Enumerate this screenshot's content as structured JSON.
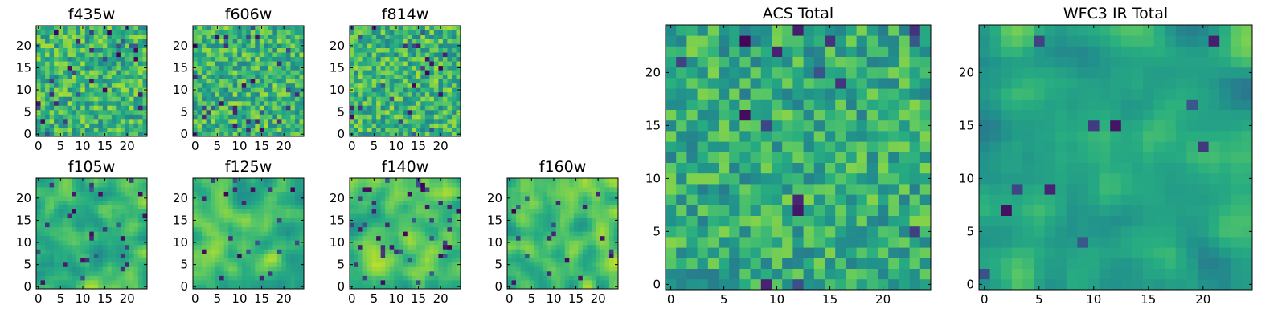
{
  "chart_data": {
    "type": "heatmap",
    "colormap": "viridis",
    "panels": [
      {
        "id": "f435w",
        "title": "f435w",
        "pixels": 25,
        "xlim": [
          0,
          24
        ],
        "ylim": [
          0,
          24
        ],
        "xticks": [
          0,
          5,
          10,
          15,
          20
        ],
        "yticks": [
          0,
          5,
          10,
          15,
          20
        ],
        "grain": 1,
        "bias": 0.66,
        "spread": 0.22,
        "dark_fraction": 0.05,
        "seed": 11
      },
      {
        "id": "f606w",
        "title": "f606w",
        "pixels": 25,
        "xlim": [
          0,
          24
        ],
        "ylim": [
          0,
          24
        ],
        "xticks": [
          0,
          5,
          10,
          15,
          20
        ],
        "yticks": [
          0,
          5,
          10,
          15,
          20
        ],
        "grain": 1,
        "bias": 0.66,
        "spread": 0.22,
        "dark_fraction": 0.04,
        "seed": 23
      },
      {
        "id": "f814w",
        "title": "f814w",
        "pixels": 25,
        "xlim": [
          0,
          24
        ],
        "ylim": [
          0,
          24
        ],
        "xticks": [
          0,
          5,
          10,
          15,
          20
        ],
        "yticks": [
          0,
          5,
          10,
          15,
          20
        ],
        "grain": 1,
        "bias": 0.66,
        "spread": 0.22,
        "dark_fraction": 0.04,
        "seed": 37
      },
      {
        "id": "f105w",
        "title": "f105w",
        "pixels": 25,
        "xlim": [
          0,
          24
        ],
        "ylim": [
          0,
          24
        ],
        "xticks": [
          0,
          5,
          10,
          15,
          20
        ],
        "yticks": [
          0,
          5,
          10,
          15,
          20
        ],
        "grain": 2,
        "bias": 0.68,
        "spread": 0.2,
        "dark_fraction": 0.05,
        "seed": 41
      },
      {
        "id": "f125w",
        "title": "f125w",
        "pixels": 25,
        "xlim": [
          0,
          24
        ],
        "ylim": [
          0,
          24
        ],
        "xticks": [
          0,
          5,
          10,
          15,
          20
        ],
        "yticks": [
          0,
          5,
          10,
          15,
          20
        ],
        "grain": 2,
        "bias": 0.68,
        "spread": 0.2,
        "dark_fraction": 0.04,
        "seed": 53
      },
      {
        "id": "f140w",
        "title": "f140w",
        "pixels": 25,
        "xlim": [
          0,
          24
        ],
        "ylim": [
          0,
          24
        ],
        "xticks": [
          0,
          5,
          10,
          15,
          20
        ],
        "yticks": [
          0,
          5,
          10,
          15,
          20
        ],
        "grain": 2,
        "bias": 0.7,
        "spread": 0.2,
        "dark_fraction": 0.05,
        "seed": 67
      },
      {
        "id": "f160w",
        "title": "f160w",
        "pixels": 25,
        "xlim": [
          0,
          24
        ],
        "ylim": [
          0,
          24
        ],
        "xticks": [
          0,
          5,
          10,
          15,
          20
        ],
        "yticks": [
          0,
          5,
          10,
          15,
          20
        ],
        "grain": 2,
        "bias": 0.7,
        "spread": 0.2,
        "dark_fraction": 0.04,
        "seed": 79
      },
      {
        "id": "acs-total",
        "title": "ACS Total",
        "pixels": 25,
        "xlim": [
          0,
          24
        ],
        "ylim": [
          0,
          24
        ],
        "xticks": [
          0,
          5,
          10,
          15,
          20
        ],
        "yticks": [
          0,
          5,
          10,
          15,
          20
        ],
        "grain": 1,
        "bias": 0.62,
        "spread": 0.2,
        "dark_fraction": 0.03,
        "seed": 97
      },
      {
        "id": "wfc3-ir-total",
        "title": "WFC3 IR Total",
        "pixels": 25,
        "xlim": [
          0,
          24
        ],
        "ylim": [
          0,
          24
        ],
        "xticks": [
          0,
          5,
          10,
          15,
          20
        ],
        "yticks": [
          0,
          5,
          10,
          15,
          20
        ],
        "grain": 2,
        "bias": 0.6,
        "spread": 0.2,
        "dark_fraction": 0.02,
        "seed": 113
      }
    ]
  }
}
